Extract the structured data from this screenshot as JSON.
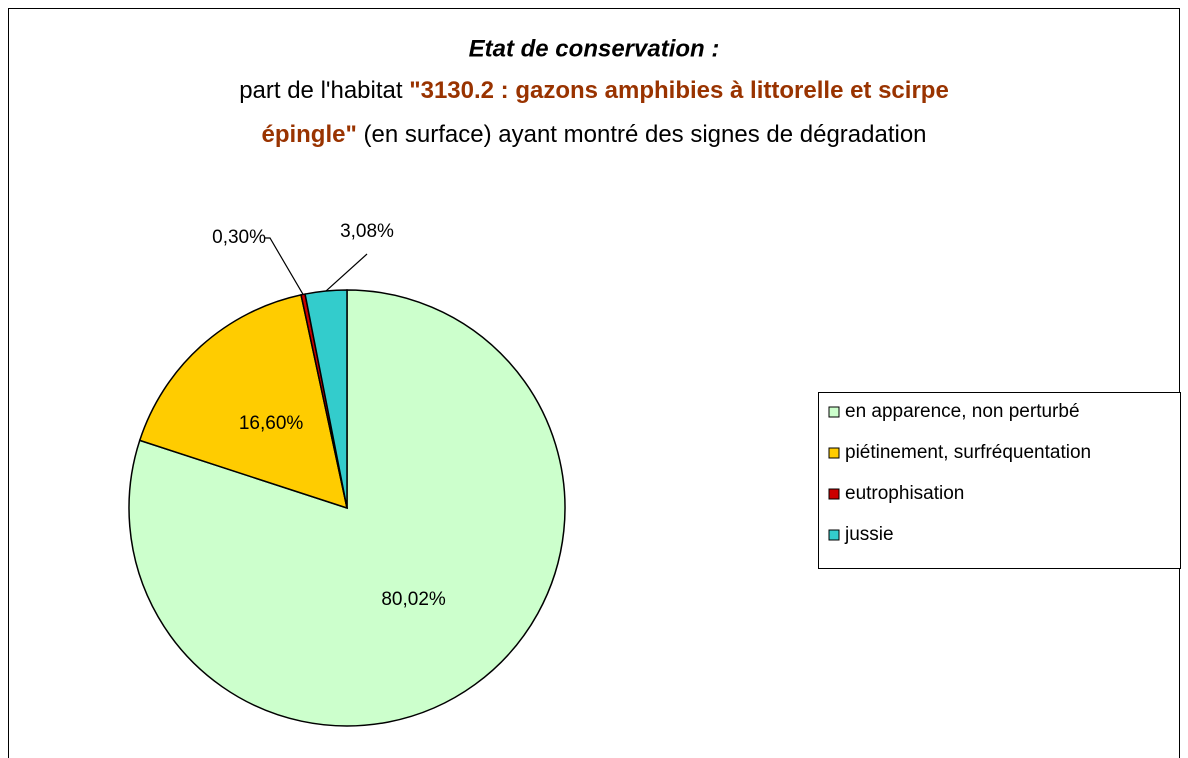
{
  "chart_data": {
    "type": "pie",
    "title": "Etat de conservation :",
    "subtitle_lines": [
      [
        {
          "text": "part de l'habitat ",
          "bold": false
        },
        {
          "text": "\"3130.2 : gazons amphibies à littorelle et scirpe",
          "bold": true
        }
      ],
      [
        {
          "text": "épingle\"",
          "bold": true
        },
        {
          "text": " (en surface) ayant montré des signes de dégradation",
          "bold": false
        }
      ]
    ],
    "highlight_color": "#993300",
    "categories": [
      "en apparence, non perturbé",
      "piétinement, surfréquentation",
      "eutrophisation",
      "jussie"
    ],
    "values": [
      80.02,
      16.6,
      0.3,
      3.08
    ],
    "value_labels": [
      "80,02%",
      "16,60%",
      "0,30%",
      "3,08%"
    ],
    "colors": [
      "#ccffcc",
      "#ffcc00",
      "#cc0000",
      "#33cccc"
    ],
    "start_angle": 0,
    "direction": "clockwise",
    "legend": "right"
  }
}
